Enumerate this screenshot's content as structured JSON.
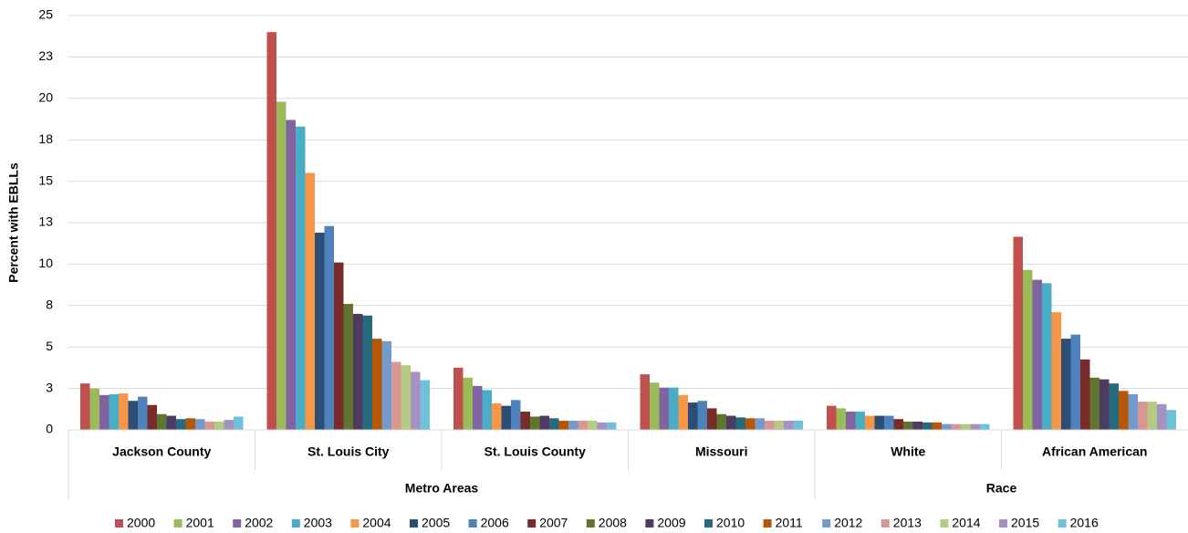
{
  "chart_data": {
    "type": "bar",
    "y_label": "Percent with EBLLs",
    "groups": [
      {
        "name": "Metro Areas",
        "categories": [
          "Jackson County",
          "St. Louis City",
          "St. Louis County",
          "Missouri"
        ]
      },
      {
        "name": "Race",
        "categories": [
          "White",
          "African American"
        ]
      }
    ],
    "ylim": [
      0,
      25
    ],
    "yticks": [
      0,
      {
        "value": 2.5,
        "label": "3"
      },
      5,
      {
        "value": 7.5,
        "label": "8"
      },
      10,
      {
        "value": 12.5,
        "label": "13"
      },
      15,
      {
        "value": 17.5,
        "label": "18"
      },
      20,
      {
        "value": 22.5,
        "label": "23"
      },
      25
    ],
    "grid": true,
    "legend": "bottom",
    "series": [
      {
        "name": "2000",
        "color": "#c0504d",
        "values": [
          2.8,
          24.0,
          3.75,
          3.35,
          1.45,
          11.65
        ]
      },
      {
        "name": "2001",
        "color": "#9bbb59",
        "values": [
          2.5,
          19.8,
          3.15,
          2.85,
          1.3,
          9.65
        ]
      },
      {
        "name": "2002",
        "color": "#8064a2",
        "values": [
          2.1,
          18.7,
          2.65,
          2.55,
          1.1,
          9.05
        ]
      },
      {
        "name": "2003",
        "color": "#4bacc6",
        "values": [
          2.15,
          18.3,
          2.4,
          2.55,
          1.1,
          8.85
        ]
      },
      {
        "name": "2004",
        "color": "#f79646",
        "values": [
          2.2,
          15.5,
          1.6,
          2.1,
          0.85,
          7.1
        ]
      },
      {
        "name": "2005",
        "color": "#2c4d75",
        "values": [
          1.75,
          11.9,
          1.45,
          1.65,
          0.85,
          5.5
        ]
      },
      {
        "name": "2006",
        "color": "#4f81bd",
        "values": [
          2.0,
          12.3,
          1.8,
          1.75,
          0.85,
          5.75
        ]
      },
      {
        "name": "2007",
        "color": "#772c2a",
        "values": [
          1.5,
          10.1,
          1.1,
          1.3,
          0.65,
          4.25
        ]
      },
      {
        "name": "2008",
        "color": "#5f7530",
        "values": [
          0.95,
          7.6,
          0.8,
          0.95,
          0.5,
          3.15
        ]
      },
      {
        "name": "2009",
        "color": "#4d3b62",
        "values": [
          0.85,
          7.0,
          0.85,
          0.85,
          0.5,
          3.05
        ]
      },
      {
        "name": "2010",
        "color": "#276a7c",
        "values": [
          0.65,
          6.9,
          0.7,
          0.75,
          0.45,
          2.8
        ]
      },
      {
        "name": "2011",
        "color": "#b65708",
        "values": [
          0.7,
          5.5,
          0.55,
          0.7,
          0.45,
          2.35
        ]
      },
      {
        "name": "2012",
        "color": "#729aca",
        "values": [
          0.65,
          5.35,
          0.55,
          0.7,
          0.35,
          2.15
        ]
      },
      {
        "name": "2013",
        "color": "#d99694",
        "values": [
          0.5,
          4.1,
          0.55,
          0.55,
          0.35,
          1.7
        ]
      },
      {
        "name": "2014",
        "color": "#b3cc82",
        "values": [
          0.5,
          3.9,
          0.55,
          0.55,
          0.35,
          1.7
        ]
      },
      {
        "name": "2015",
        "color": "#a692c2",
        "values": [
          0.6,
          3.5,
          0.45,
          0.55,
          0.35,
          1.55
        ]
      },
      {
        "name": "2016",
        "color": "#6dc2d8",
        "values": [
          0.8,
          3.0,
          0.45,
          0.55,
          0.35,
          1.2
        ]
      }
    ]
  }
}
